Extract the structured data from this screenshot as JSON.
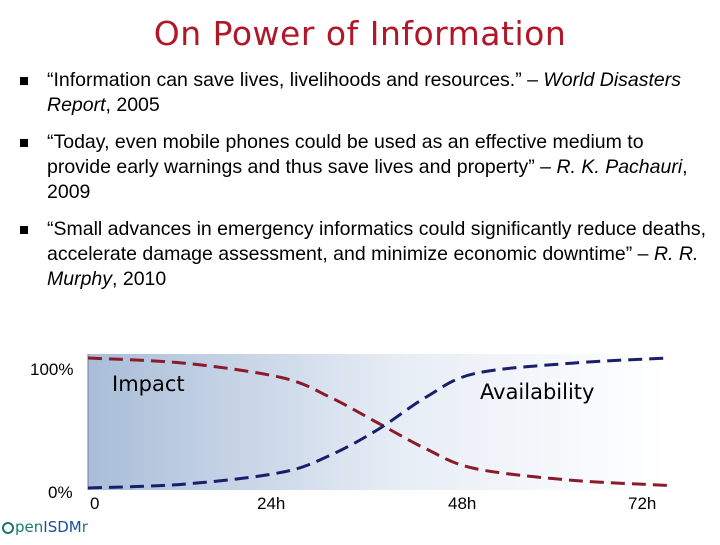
{
  "title": "On Power of Information",
  "bullets": [
    {
      "quote": "“Information can save lives, livelihoods and resources.” – ",
      "source": "World Disasters Report",
      "year": ", 2005"
    },
    {
      "quote": "“Today, even mobile phones could be used as an effective medium to provide early warnings and thus save lives and property” – ",
      "source": "R. K. Pachauri",
      "year": ", 2009"
    },
    {
      "quote": "“Small advances in emergency informatics could significantly reduce deaths, accelerate damage assessment, and minimize economic downtime” – ",
      "source": "R. R. Murphy",
      "year": ", 2010"
    }
  ],
  "chart_data": {
    "type": "line",
    "y_ticks": [
      "100%",
      "0%"
    ],
    "x_ticks": [
      "0",
      "24h",
      "48h",
      "72h"
    ],
    "series": [
      {
        "name": "Impact",
        "color": "#8b1a2b",
        "style": "dashed",
        "x": [
          0,
          12,
          24,
          30,
          36,
          42,
          48,
          60,
          72
        ],
        "y": [
          100,
          96,
          85,
          70,
          50,
          30,
          15,
          6,
          2
        ]
      },
      {
        "name": "Availability",
        "color": "#1a1f6b",
        "style": "dashed",
        "x": [
          0,
          12,
          24,
          30,
          36,
          42,
          48,
          60,
          72
        ],
        "y": [
          0,
          3,
          12,
          25,
          45,
          70,
          88,
          96,
          100
        ]
      }
    ],
    "xlim": [
      0,
      72
    ],
    "ylim": [
      0,
      100
    ]
  },
  "logo": {
    "text_open": "pen",
    "text_emph": "ISDM",
    "text_tail": "r"
  }
}
